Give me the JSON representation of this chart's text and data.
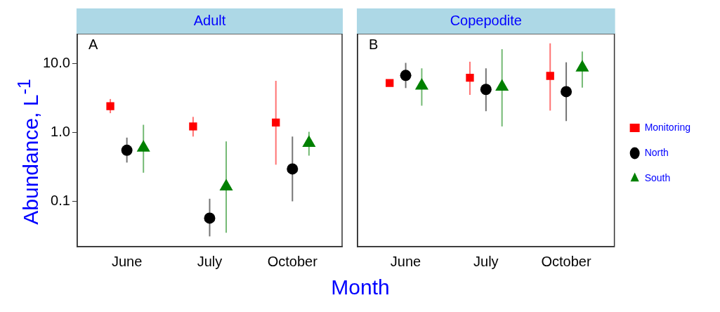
{
  "chart_data": [
    {
      "type": "scatter",
      "title": "Adult",
      "ylabel": "Abundance, L$^{-1}$",
      "xlabel": "Month",
      "annotations": [
        "A"
      ],
      "categories": [
        "June",
        "July",
        "October"
      ],
      "log": "y",
      "ylim": [
        0.022,
        27
      ],
      "yticks": [
        {
          "value": 0.1,
          "label": "0.1"
        },
        {
          "value": 1,
          "label": "1.0"
        },
        {
          "value": 10,
          "label": "10.0"
        }
      ],
      "grid": false,
      "legend": false,
      "series": [
        {
          "color": "#ff0000",
          "marker": "square",
          "values": [
            2.4,
            1.22,
            1.39
          ],
          "errors": [
            [
              1.9,
              3.05
            ],
            [
              0.87,
              1.68
            ],
            [
              0.34,
              5.6
            ]
          ]
        },
        {
          "color": "#000000",
          "marker": "circle",
          "values": [
            0.55,
            0.057,
            0.295
          ],
          "errors": [
            [
              0.365,
              0.84
            ],
            [
              0.031,
              0.109
            ],
            [
              0.1,
              0.87
            ]
          ]
        },
        {
          "color": "#008000",
          "marker": "triangle",
          "values": [
            0.6,
            0.164,
            0.7
          ],
          "errors": [
            [
              0.26,
              1.29
            ],
            [
              0.035,
              0.74
            ],
            [
              0.46,
              1.02
            ]
          ]
        }
      ]
    },
    {
      "type": "scatter",
      "title": "Copepodite",
      "annotations": [
        "B"
      ],
      "categories": [
        "June",
        "July",
        "October"
      ],
      "log": "y",
      "ylim": [
        0.022,
        27
      ],
      "tick_labels": "x",
      "grid": false,
      "legend": "right",
      "series": [
        {
          "name": "Monitoring",
          "color": "#ff0000",
          "marker": "square",
          "values": [
            5.2,
            6.2,
            6.6
          ],
          "errors": [
            [
              4.9,
              5.6
            ],
            [
              3.5,
              10.6
            ],
            [
              2.07,
              19.6
            ]
          ]
        },
        {
          "name": "North",
          "color": "#000000",
          "marker": "circle",
          "values": [
            6.7,
            4.2,
            3.9
          ],
          "errors": [
            [
              4.4,
              10.2
            ],
            [
              2.03,
              8.5
            ],
            [
              1.46,
              10.4
            ]
          ]
        },
        {
          "name": "South",
          "color": "#008000",
          "marker": "triangle",
          "values": [
            4.75,
            4.6,
            8.7
          ],
          "errors": [
            [
              2.44,
              8.5
            ],
            [
              1.22,
              16.1
            ],
            [
              4.46,
              14.9
            ]
          ]
        }
      ]
    }
  ]
}
